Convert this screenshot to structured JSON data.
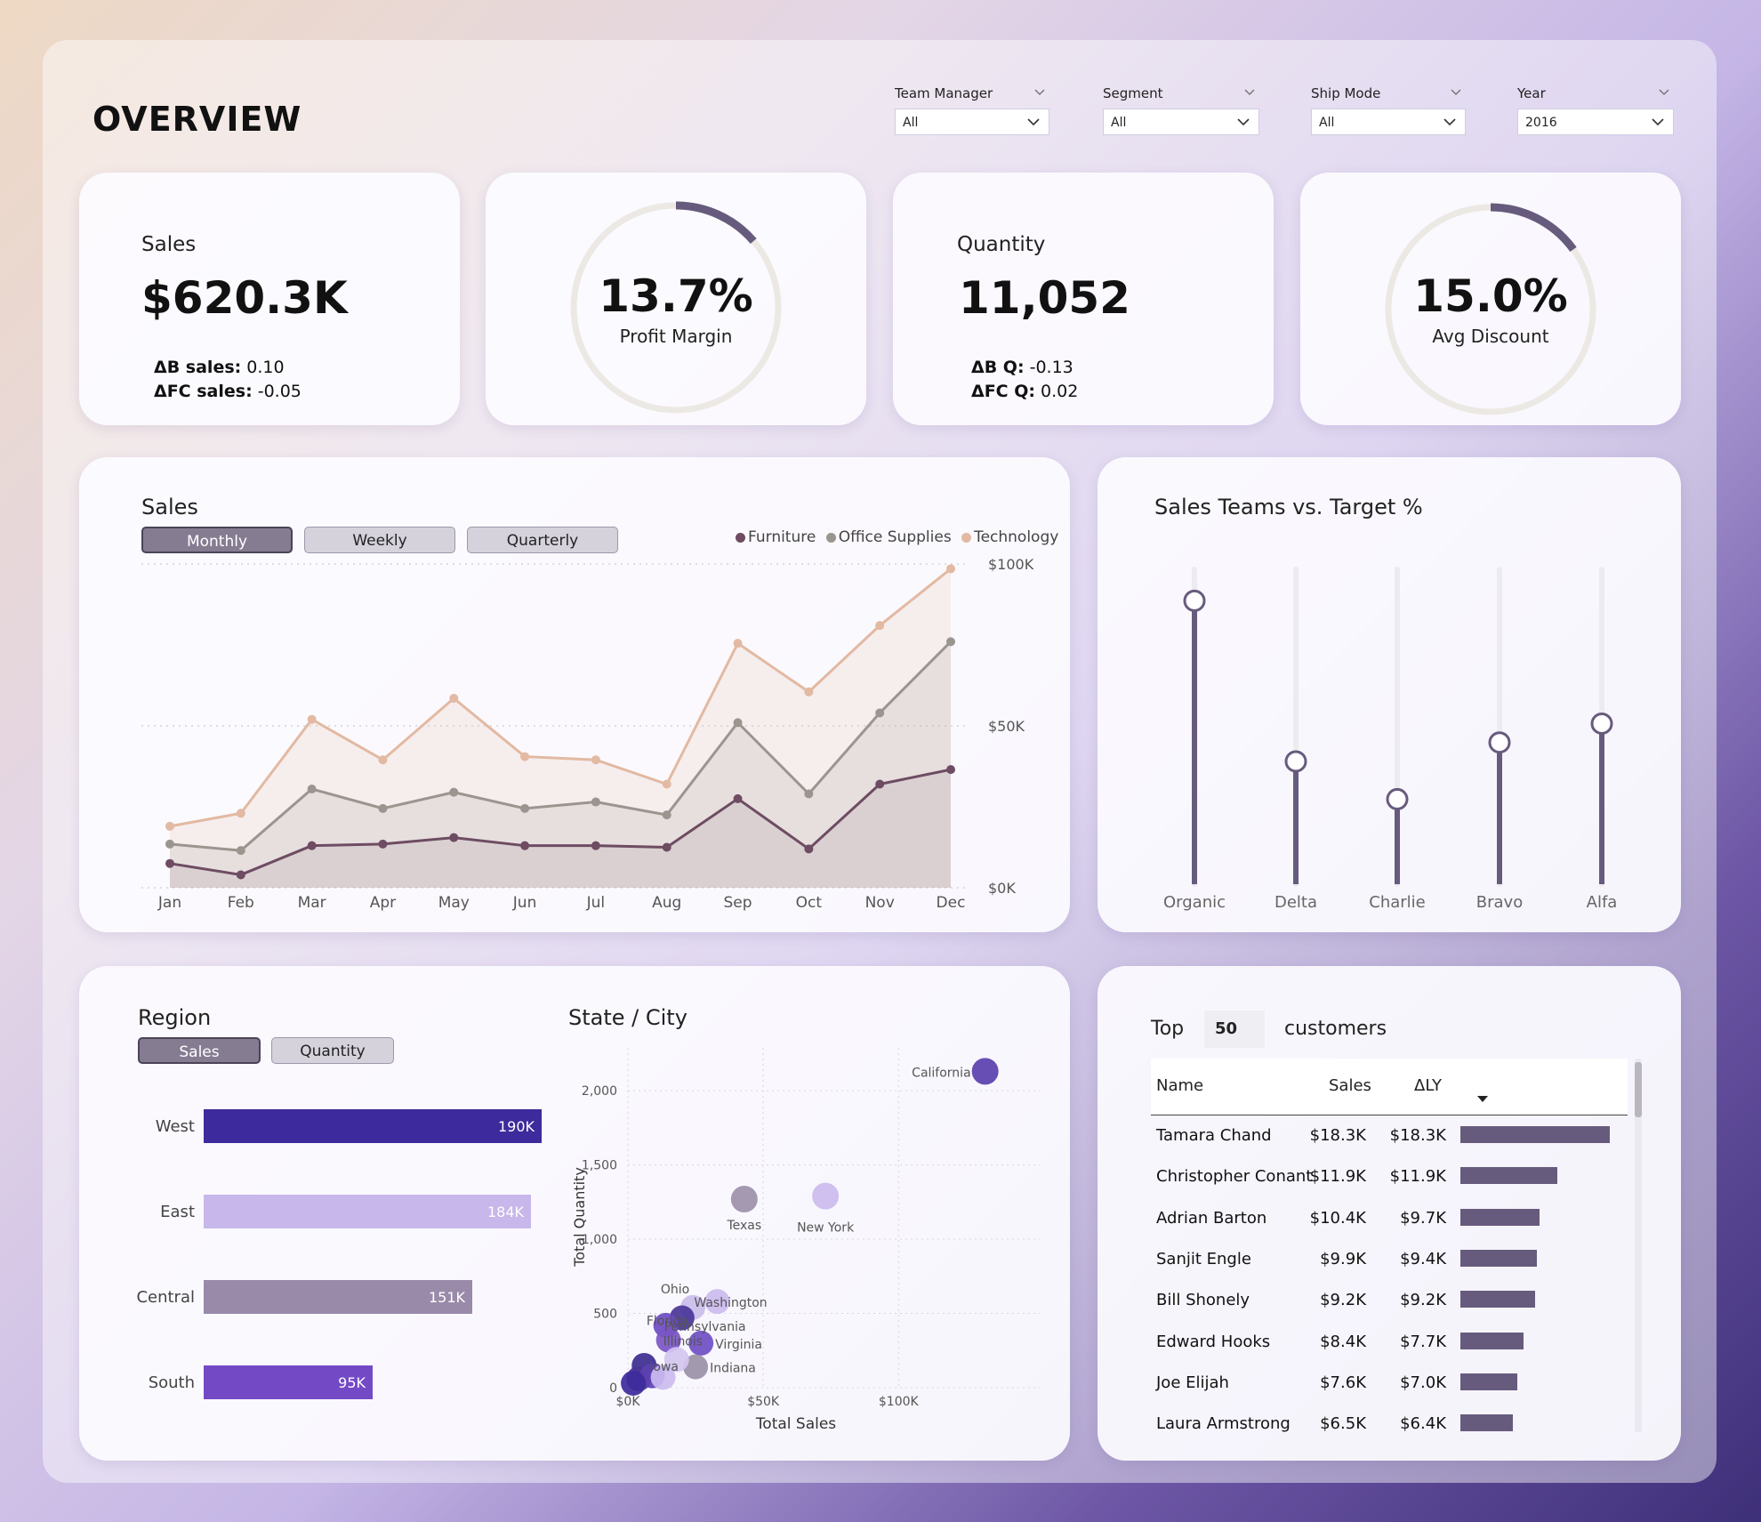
{
  "header": {
    "title": "OVERVIEW"
  },
  "filters": [
    {
      "label": "Team Manager",
      "value": "All"
    },
    {
      "label": "Segment",
      "value": "All"
    },
    {
      "label": "Ship Mode",
      "value": "All"
    },
    {
      "label": "Year",
      "value": "2016"
    }
  ],
  "kpis": {
    "sales": {
      "label": "Sales",
      "value": "$620.3K",
      "d1_label": "ΔB sales:",
      "d1_value": " 0.10",
      "d2_label": "ΔFC sales:",
      "d2_value": " -0.05"
    },
    "profit": {
      "value": "13.7%",
      "label": "Profit Margin",
      "fraction": 0.137
    },
    "quantity": {
      "label": "Quantity",
      "value": "11,052",
      "d1_label": "ΔB Q:",
      "d1_value": " -0.13",
      "d2_label": "ΔFC Q:",
      "d2_value": " 0.02"
    },
    "discount": {
      "value": "15.0%",
      "label": "Avg Discount",
      "fraction": 0.15
    }
  },
  "colors": {
    "furniture": "#6e4c62",
    "office": "#9a958f",
    "technology": "#e2b9a2",
    "track": "#ece9e4",
    "gauge": "#675b7d",
    "bar_dark": "#675b7d"
  },
  "sales_chart": {
    "title": "Sales",
    "toggles": [
      "Monthly",
      "Weekly",
      "Quarterly"
    ],
    "active_toggle": "Monthly"
  },
  "teams_chart": {
    "title": "Sales Teams vs. Target %"
  },
  "region_chart": {
    "title": "Region",
    "toggles": [
      "Sales",
      "Quantity"
    ],
    "active_toggle": "Sales"
  },
  "state_chart": {
    "title": "State / City"
  },
  "top_customers": {
    "prefix": "Top",
    "count": "50",
    "suffix": "customers",
    "columns": [
      "Name",
      "Sales",
      "ΔLY"
    ],
    "rows": [
      {
        "name": "Tamara Chand",
        "sales": "$18.3K",
        "dly": "$18.3K",
        "bar": 18.3
      },
      {
        "name": "Christopher Conant",
        "sales": "$11.9K",
        "dly": "$11.9K",
        "bar": 11.9
      },
      {
        "name": "Adrian Barton",
        "sales": "$10.4K",
        "dly": "$9.7K",
        "bar": 9.7
      },
      {
        "name": "Sanjit Engle",
        "sales": "$9.9K",
        "dly": "$9.4K",
        "bar": 9.4
      },
      {
        "name": "Bill Shonely",
        "sales": "$9.2K",
        "dly": "$9.2K",
        "bar": 9.2
      },
      {
        "name": "Edward Hooks",
        "sales": "$8.4K",
        "dly": "$7.7K",
        "bar": 7.7
      },
      {
        "name": "Joe Elijah",
        "sales": "$7.6K",
        "dly": "$7.0K",
        "bar": 7.0
      },
      {
        "name": "Laura Armstrong",
        "sales": "$6.5K",
        "dly": "$6.4K",
        "bar": 6.4
      }
    ]
  },
  "chart_data": [
    {
      "type": "area",
      "title": "Sales",
      "categories": [
        "Jan",
        "Feb",
        "Mar",
        "Apr",
        "May",
        "Jun",
        "Jul",
        "Aug",
        "Sep",
        "Oct",
        "Nov",
        "Dec"
      ],
      "series": [
        {
          "name": "Furniture",
          "values": [
            15,
            8,
            26,
            27,
            31,
            26,
            26,
            25,
            55,
            24,
            64,
            73
          ]
        },
        {
          "name": "Office Supplies",
          "values": [
            27,
            23,
            61,
            49,
            59,
            49,
            53,
            45,
            102,
            58,
            108,
            152
          ]
        },
        {
          "name": "Technology",
          "values": [
            38,
            46,
            104,
            79,
            117,
            81,
            79,
            64,
            151,
            121,
            162,
            197
          ]
        }
      ],
      "y_tick_labels": [
        "$0K",
        "$50K",
        "$100K"
      ],
      "ylim": [
        0,
        200
      ],
      "legend": "top-right"
    },
    {
      "type": "bar",
      "title": "Sales Teams vs. Target %",
      "categories": [
        "Organic",
        "Delta",
        "Charlie",
        "Bravo",
        "Alfa"
      ],
      "values": [
        90,
        39,
        27,
        45,
        51
      ],
      "ylim": [
        0,
        100
      ]
    },
    {
      "type": "bar",
      "title": "Region",
      "categories": [
        "West",
        "East",
        "Central",
        "South"
      ],
      "values": [
        190,
        184,
        151,
        95
      ],
      "data_labels": [
        "190K",
        "184K",
        "151K",
        "95K"
      ],
      "colors": [
        "#3d2a9c",
        "#c8b7ea",
        "#998aaa",
        "#7449c6"
      ]
    },
    {
      "type": "scatter",
      "title": "State / City",
      "xlabel": "Total Sales",
      "ylabel": "Total Quantity",
      "xlim": [
        0,
        140
      ],
      "ylim": [
        0,
        2300
      ],
      "x_ticks": [
        0,
        50,
        100
      ],
      "x_tick_labels": [
        "$0K",
        "$50K",
        "$100K"
      ],
      "y_ticks": [
        0,
        500,
        1000,
        1500,
        2000
      ],
      "y_tick_labels": [
        "0",
        "500",
        "1,000",
        "1,500",
        "2,000"
      ],
      "points": [
        {
          "name": "California",
          "x": 132,
          "y": 2130,
          "color": "#5a3fae"
        },
        {
          "name": "New York",
          "x": 73,
          "y": 1290,
          "color": "#cbbbef"
        },
        {
          "name": "Texas",
          "x": 43,
          "y": 1270,
          "color": "#9d90aa"
        },
        {
          "name": "Washington",
          "x": 33,
          "y": 580,
          "color": "#cbbbef"
        },
        {
          "name": "Ohio",
          "x": 24,
          "y": 540,
          "color": "#c9bdea"
        },
        {
          "name": "Florida",
          "x": 20,
          "y": 470,
          "color": "#4a3597"
        },
        {
          "name": "Pennsylvania",
          "x": 14,
          "y": 420,
          "color": "#6c4bc2"
        },
        {
          "name": "Illinois",
          "x": 15,
          "y": 320,
          "color": "#7a55c6"
        },
        {
          "name": "Virginia",
          "x": 27,
          "y": 300,
          "color": "#6f4ec3"
        },
        {
          "name": "Indiana",
          "x": 25,
          "y": 140,
          "color": "#9a90a8"
        },
        {
          "name": "Iowa",
          "x": 6,
          "y": 150,
          "color": "#3b2b8f"
        },
        {
          "name": "",
          "x": 18,
          "y": 190,
          "color": "#d4c6f0"
        },
        {
          "name": "",
          "x": 4,
          "y": 60,
          "color": "#4a3597"
        },
        {
          "name": "",
          "x": 9,
          "y": 80,
          "color": "#5c41b2"
        },
        {
          "name": "",
          "x": 13,
          "y": 70,
          "color": "#cbbbef"
        },
        {
          "name": "",
          "x": 2,
          "y": 30,
          "color": "#3d2a9c"
        }
      ]
    },
    {
      "type": "bar",
      "title": "Top customers",
      "categories": [
        "Tamara Chand",
        "Christopher Conant",
        "Adrian Barton",
        "Sanjit Engle",
        "Bill Shonely",
        "Edward Hooks",
        "Joe Elijah",
        "Laura Armstrong"
      ],
      "values": [
        18.3,
        11.9,
        9.7,
        9.4,
        9.2,
        7.7,
        7.0,
        6.4
      ]
    }
  ]
}
